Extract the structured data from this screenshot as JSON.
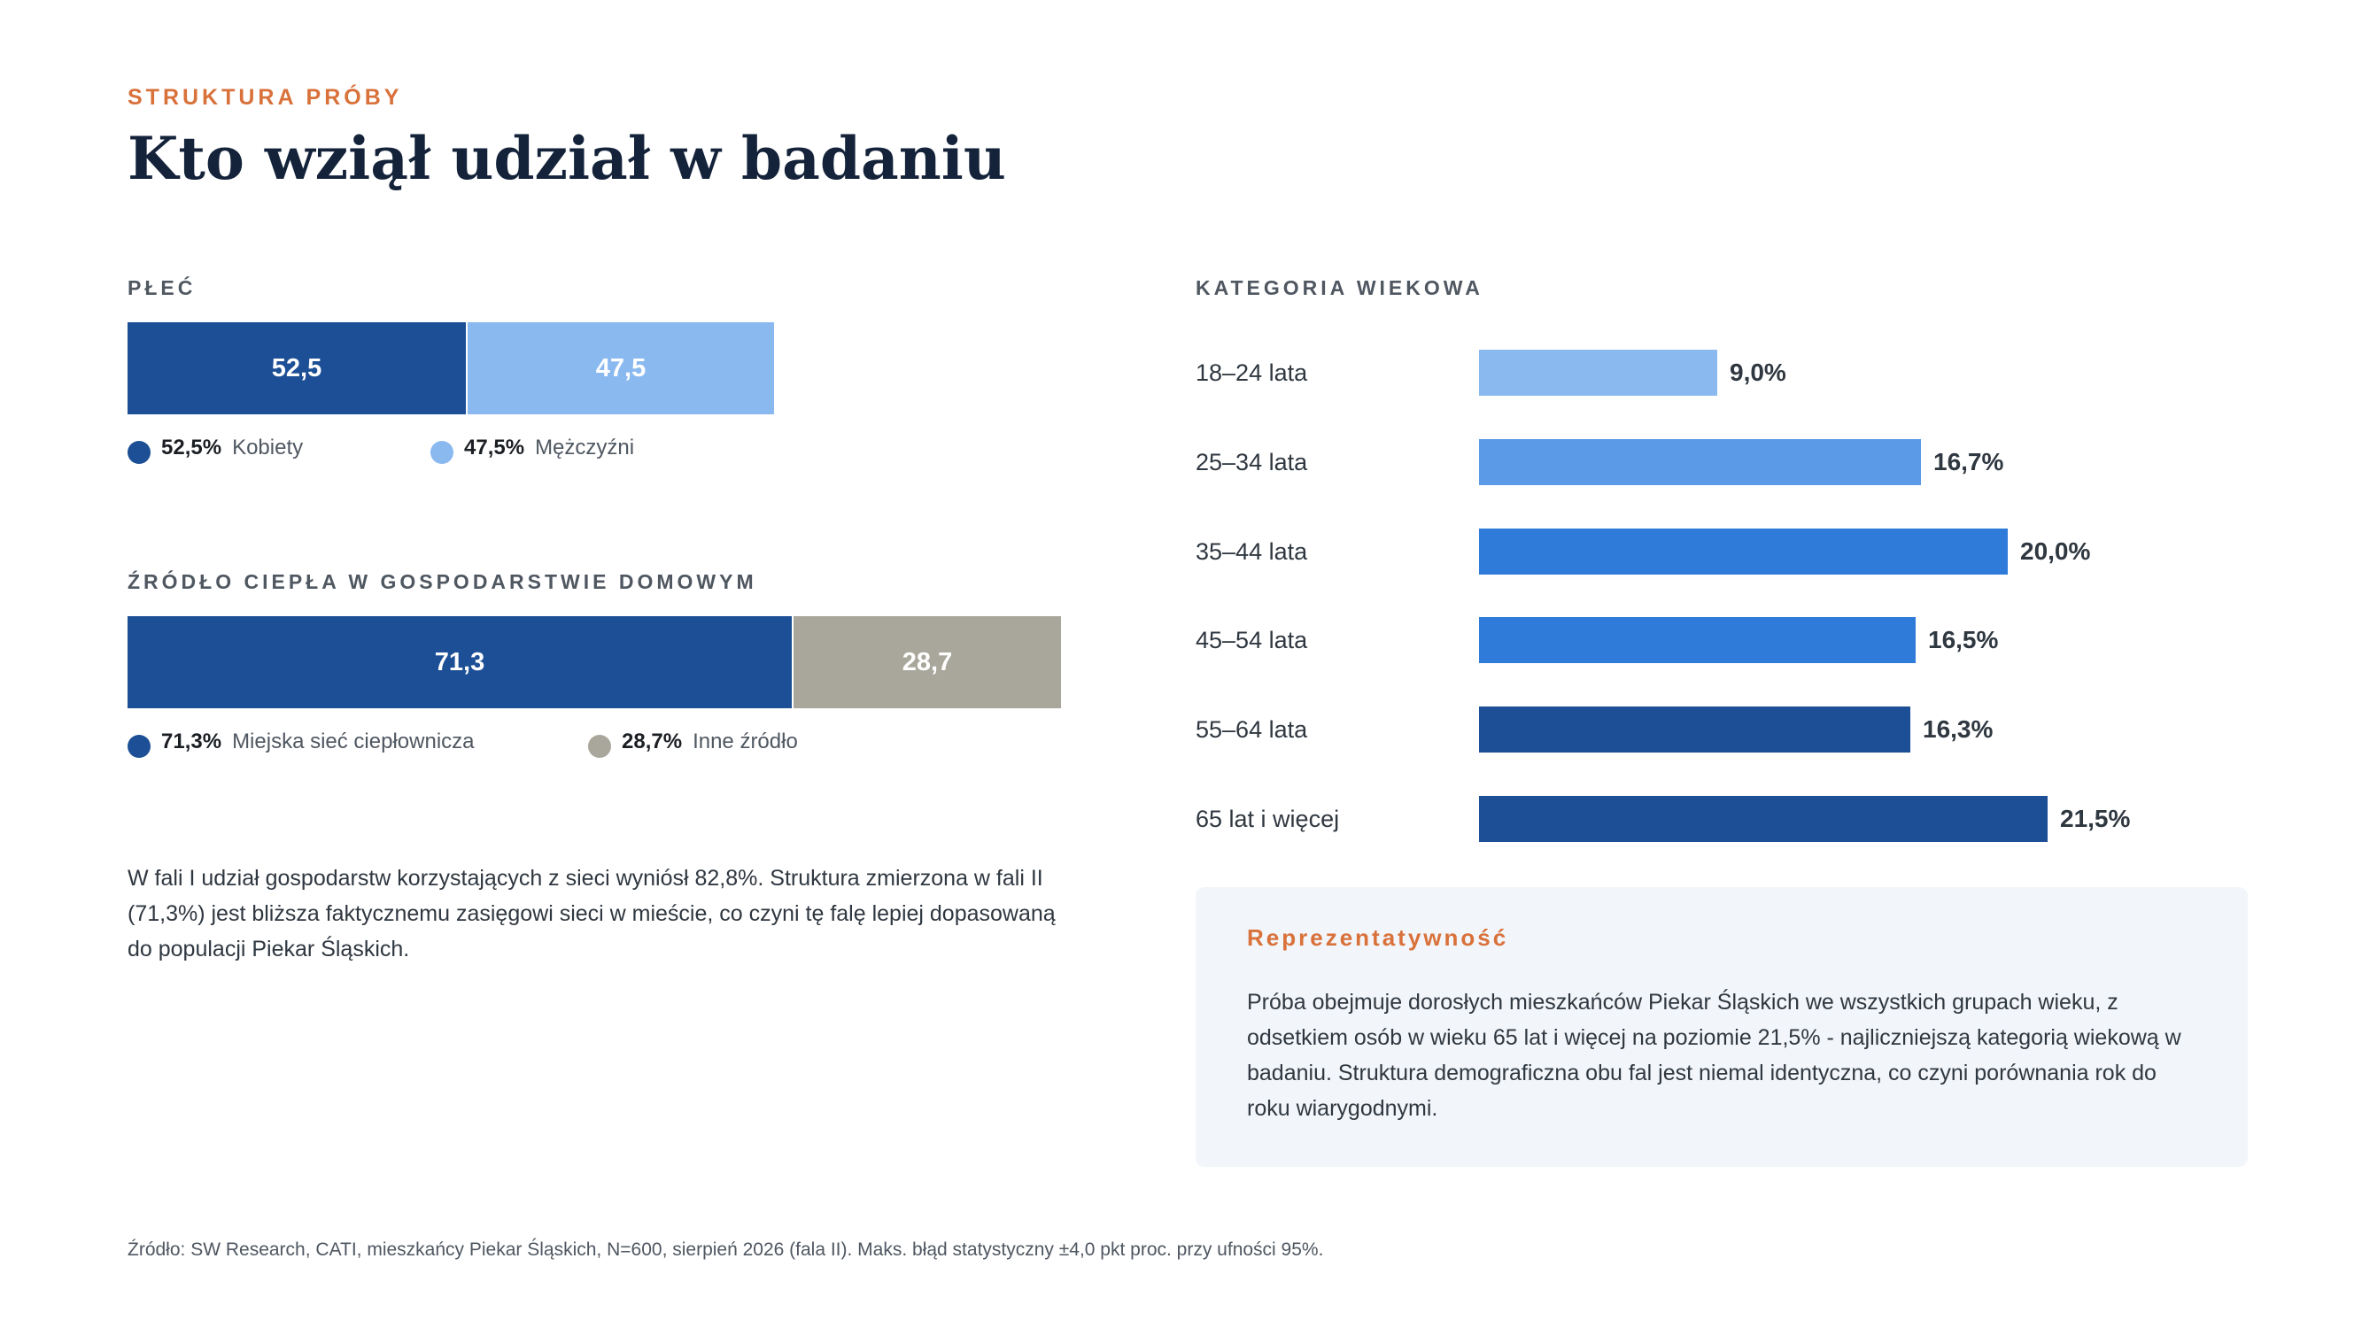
{
  "header": {
    "eyebrow": "STRUKTURA PRÓBY",
    "title": "Kto wziął udział w badaniu"
  },
  "gender": {
    "label": "PŁEĆ",
    "segments": [
      {
        "value_label": "52,5",
        "percent_label": "52,5%",
        "name": "Kobiety",
        "share": 52.5,
        "color": "#1c4f95"
      },
      {
        "value_label": "47,5",
        "percent_label": "47,5%",
        "name": "Mężczyźni",
        "share": 47.5,
        "color": "#8ab9f0"
      }
    ]
  },
  "heat_source": {
    "label": "ŹRÓDŁO CIEPŁA W GOSPODARSTWIE DOMOWYM",
    "segments": [
      {
        "value_label": "71,3",
        "percent_label": "71,3%",
        "name": "Miejska sieć ciepłownicza",
        "share": 71.3,
        "color": "#1c4f95"
      },
      {
        "value_label": "28,7",
        "percent_label": "28,7%",
        "name": "Inne źródło",
        "share": 28.7,
        "color": "#a9a79b"
      }
    ]
  },
  "note": "W fali I udział gospodarstw korzystających z sieci wyniósł 82,8%. Struktura zmierzona w fali II (71,3%) jest bliższa faktycznemu zasięgowi sieci w mieście, co czyni tę falę lepiej dopasowaną do populacji Piekar Śląskich.",
  "age": {
    "label": "KATEGORIA WIEKOWA",
    "value_labels": [
      "9,0%",
      "16,7%",
      "20,0%",
      "16,5%",
      "16,3%",
      "21,5%"
    ],
    "colors": [
      "#8ab9f0",
      "#5a9ae6",
      "#2e7bd9",
      "#2e7bd9",
      "#1c4f95",
      "#1c4f95"
    ]
  },
  "chart_data": {
    "type": "bar",
    "orientation": "horizontal",
    "title": "KATEGORIA WIEKOWA",
    "categories": [
      "18–24 lata",
      "25–34 lata",
      "35–44 lata",
      "45–54 lata",
      "55–64 lata",
      "65 lat i więcej"
    ],
    "values": [
      9.0,
      16.7,
      20.0,
      16.5,
      16.3,
      21.5
    ],
    "unit": "%",
    "grid": false
  },
  "representativeness": {
    "title": "Reprezentatywność",
    "text": "Próba obejmuje dorosłych mieszkańców Piekar Śląskich we wszystkich grupach wieku, z odsetkiem osób w wieku 65 lat i więcej na poziomie 21,5% - najliczniejszą kategorią wiekową w badaniu. Struktura demograficzna obu fal jest niemal identyczna, co czyni porównania rok do roku wiarygodnymi."
  },
  "source": "Źródło: SW Research, CATI, mieszkańcy Piekar Śląskich, N=600, sierpień 2026 (fala II). Maks. błąd statystyczny ±4,0 pkt proc. przy ufności 95%."
}
